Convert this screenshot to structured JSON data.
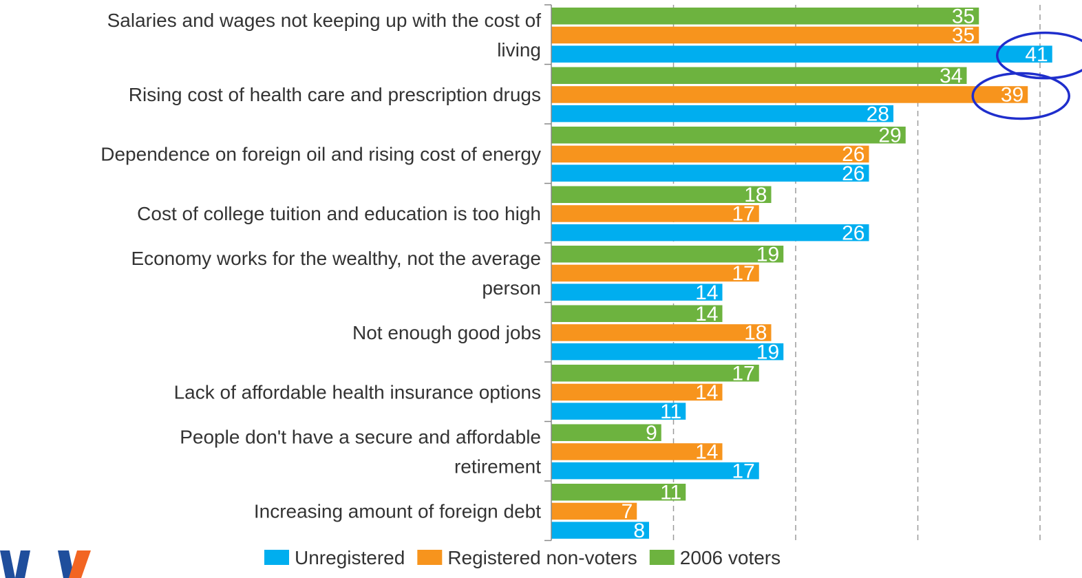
{
  "chart_data": {
    "type": "bar",
    "orientation": "horizontal",
    "categories": [
      [
        "Salaries and wages not keeping up with the cost of",
        "living"
      ],
      [
        "Rising cost of health care and prescription drugs"
      ],
      [
        "Dependence on foreign oil and rising cost of energy"
      ],
      [
        "Cost of college tuition and education is too high"
      ],
      [
        "Economy works for the wealthy, not the average",
        "person"
      ],
      [
        "Not enough good jobs"
      ],
      [
        "Lack of affordable health insurance options"
      ],
      [
        "People don't have a secure and affordable",
        "retirement"
      ],
      [
        "Increasing amount of foreign debt"
      ]
    ],
    "series": [
      {
        "name": "2006 voters",
        "color": "#6db33f",
        "values": [
          35,
          34,
          29,
          18,
          19,
          14,
          17,
          9,
          11
        ]
      },
      {
        "name": "Registered non-voters",
        "color": "#f7941d",
        "values": [
          35,
          39,
          26,
          17,
          17,
          18,
          14,
          14,
          7
        ]
      },
      {
        "name": "Unregistered",
        "color": "#00aeef",
        "values": [
          41,
          28,
          26,
          26,
          14,
          19,
          11,
          17,
          8
        ]
      }
    ],
    "legend_order": [
      "Unregistered",
      "Registered non-voters",
      "2006 voters"
    ],
    "xlim": [
      0,
      40
    ],
    "grid": true,
    "legend_position": "bottom",
    "highlights": [
      {
        "category_index": 0,
        "series": "Unregistered",
        "shape": "ellipse",
        "color": "#1f2ecc"
      },
      {
        "category_index": 1,
        "series": "Registered non-voters",
        "shape": "ellipse",
        "color": "#1f2ecc"
      }
    ]
  },
  "logo": {
    "colors": [
      "#1f4e9c",
      "#f26522"
    ]
  }
}
